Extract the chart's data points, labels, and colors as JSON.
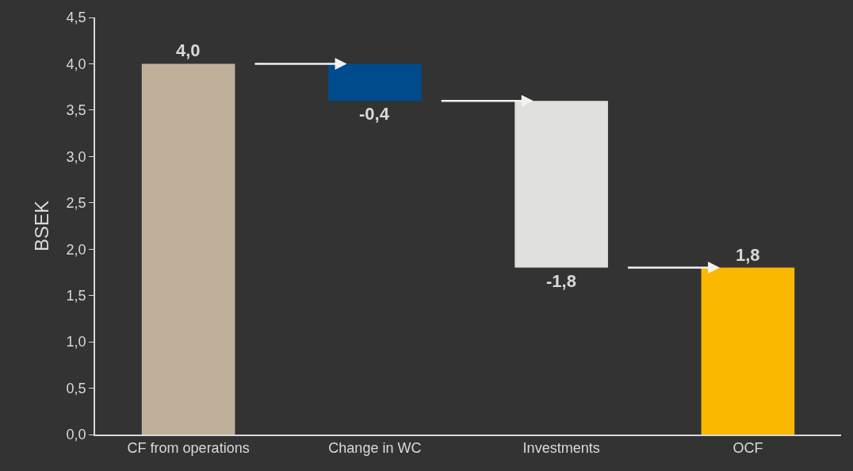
{
  "chart_data": {
    "type": "bar",
    "ylabel": "BSEK",
    "categories": [
      "CF from operations",
      "Change in WC",
      "Investments",
      "OCF"
    ],
    "values": [
      4.0,
      -0.4,
      -1.8,
      1.8
    ],
    "base": [
      0,
      4.0,
      3.6,
      0
    ],
    "value_labels": [
      "4,0",
      "-0,4",
      "-1,8",
      "1,8"
    ],
    "colors": [
      "#bfb09a",
      "#004b8d",
      "#e0e0dc",
      "#fbb800"
    ],
    "ylim": [
      0,
      4.5
    ],
    "yticks": [
      {
        "value": 0,
        "label": "0,0"
      },
      {
        "value": 0.5,
        "label": "0,5"
      },
      {
        "value": 1,
        "label": "1,0"
      },
      {
        "value": 1.5,
        "label": "1,5"
      },
      {
        "value": 2,
        "label": "2,0"
      },
      {
        "value": 2.5,
        "label": "2,5"
      },
      {
        "value": 3,
        "label": "3,0"
      },
      {
        "value": 3.5,
        "label": "3,5"
      },
      {
        "value": 4,
        "label": "4,0"
      },
      {
        "value": 4.5,
        "label": "4,5"
      }
    ],
    "grid": false,
    "legend": false
  }
}
